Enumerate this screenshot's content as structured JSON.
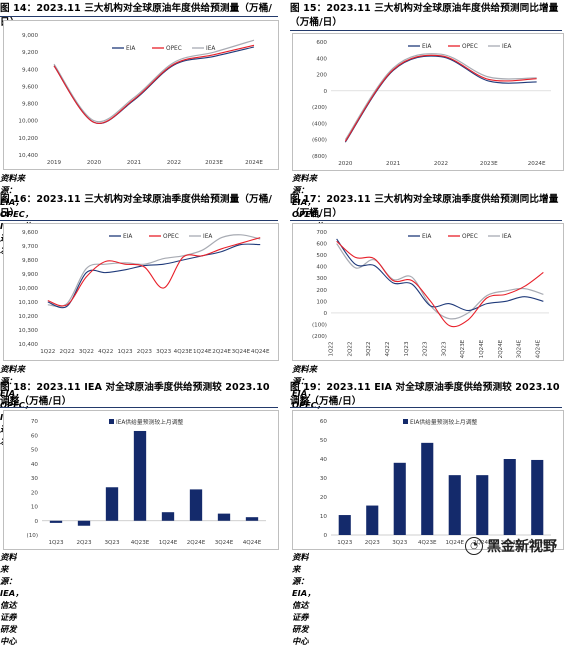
{
  "figures": [
    {
      "title": "图 14：2023.11 三大机构对全球原油年度供给预测量（万桶/日）",
      "source": "资料来源：EIA，OPEC，IEA，信达证券研发中心"
    },
    {
      "title": "图 15：2023.11 三大机构对全球原油年度供给预测同比增量（万桶/日）",
      "source": "资料来源：EIA，OPEC，IEA，信达证券研发中心"
    },
    {
      "title": "图 16：2023.11 三大机构对全球原油季度供给预测量（万桶/日）",
      "source": "资料来源：EIA，OPEC，IEA，信达证券研发中心"
    },
    {
      "title": "图 17：2023.11 三大机构对全球原油季度供给预测同比增量（万桶/日）",
      "source": "资料来源：EIA，OPEC，IEA，信达证券研发中心"
    },
    {
      "title": "图 18：2023.11 IEA 对全球原油季度供给预测较 2023.10 调整（万桶/日）",
      "source": "资料来源：IEA，信达证券研发中心"
    },
    {
      "title": "图 19：2023.11 EIA 对全球原油季度供给预测较 2023.10 调整（万桶/日）",
      "source": "资料来源：EIA，信达证券研发中心"
    }
  ],
  "watermark": "黑金新视野",
  "colors": {
    "EIA": "#1f3a7a",
    "OPEC": "#e8202a",
    "IEA": "#a8abb3",
    "bar": "#142a6b",
    "rule": "#233a6b"
  },
  "chart_data": [
    {
      "type": "line",
      "x": [
        "2019",
        "2020",
        "2021",
        "2022",
        "2023E",
        "2024E"
      ],
      "ylim": [
        9000,
        10400
      ],
      "yticks": [
        "9,000",
        "9,200",
        "9,400",
        "9,600",
        "9,800",
        "10,000",
        "10,200",
        "10,400"
      ],
      "series": [
        {
          "name": "EIA",
          "values": [
            10040,
            9380,
            9640,
            10050,
            10150,
            10260
          ]
        },
        {
          "name": "OPEC",
          "values": [
            10040,
            9380,
            9650,
            10060,
            10170,
            10280
          ]
        },
        {
          "name": "IEA",
          "values": [
            10060,
            9400,
            9670,
            10080,
            10200,
            10340
          ]
        }
      ]
    },
    {
      "type": "line",
      "x": [
        "2020",
        "2021",
        "2022",
        "2023E",
        "2024E"
      ],
      "ylim": [
        -800,
        600
      ],
      "yticks": [
        "600",
        "400",
        "200",
        "0",
        "(200)",
        "(400)",
        "(600)",
        "(800)"
      ],
      "series": [
        {
          "name": "EIA",
          "values": [
            -630,
            250,
            420,
            120,
            110
          ]
        },
        {
          "name": "OPEC",
          "values": [
            -620,
            260,
            430,
            140,
            150
          ]
        },
        {
          "name": "IEA",
          "values": [
            -600,
            280,
            450,
            170,
            160
          ]
        }
      ]
    },
    {
      "type": "line",
      "x": [
        "1Q22",
        "2Q22",
        "3Q22",
        "4Q22",
        "1Q23",
        "2Q23",
        "3Q23",
        "4Q23E",
        "1Q24E",
        "2Q24E",
        "3Q24E",
        "4Q24E"
      ],
      "ylim": [
        9600,
        10400
      ],
      "yticks": [
        "9,600",
        "9,700",
        "9,800",
        "9,900",
        "10,000",
        "10,100",
        "10,200",
        "10,300",
        "10,400"
      ],
      "series": [
        {
          "name": "EIA",
          "values": [
            9900,
            9870,
            10110,
            10110,
            10130,
            10160,
            10170,
            10200,
            10230,
            10260,
            10310,
            10310
          ]
        },
        {
          "name": "OPEC",
          "values": [
            9910,
            9880,
            10080,
            10190,
            10170,
            10150,
            10000,
            10220,
            10230,
            10280,
            10320,
            10360
          ]
        },
        {
          "name": "IEA",
          "values": [
            9880,
            9890,
            10140,
            10170,
            10180,
            10170,
            10210,
            10230,
            10270,
            10360,
            10380,
            10350
          ]
        }
      ]
    },
    {
      "type": "line",
      "x": [
        "1Q22",
        "2Q22",
        "3Q22",
        "4Q22",
        "1Q23",
        "2Q23",
        "3Q23",
        "4Q23E",
        "1Q24E",
        "2Q24E",
        "3Q24E",
        "4Q24E"
      ],
      "ylim": [
        -200,
        700
      ],
      "yticks": [
        "700",
        "600",
        "500",
        "400",
        "300",
        "200",
        "100",
        "0",
        "(100)",
        "(200)"
      ],
      "series": [
        {
          "name": "EIA",
          "values": [
            640,
            420,
            410,
            260,
            250,
            60,
            80,
            20,
            80,
            100,
            140,
            100
          ]
        },
        {
          "name": "OPEC",
          "values": [
            620,
            480,
            470,
            280,
            280,
            100,
            -110,
            -60,
            130,
            160,
            230,
            350
          ]
        },
        {
          "name": "IEA",
          "values": [
            600,
            390,
            460,
            290,
            310,
            60,
            -50,
            0,
            150,
            190,
            210,
            160
          ]
        }
      ]
    },
    {
      "type": "bar",
      "categories": [
        "1Q23",
        "2Q23",
        "3Q23",
        "4Q23E",
        "1Q24E",
        "2Q24E",
        "3Q24E",
        "4Q24E"
      ],
      "ylim": [
        -10,
        70
      ],
      "yticks": [
        "70",
        "60",
        "50",
        "40",
        "30",
        "20",
        "10",
        "0",
        "(10)"
      ],
      "series": [
        {
          "name": "IEA供给量预测较上月调整",
          "values": [
            -1.5,
            -3.5,
            23.5,
            63,
            6,
            22,
            5,
            2.5
          ]
        }
      ]
    },
    {
      "type": "bar",
      "categories": [
        "1Q23",
        "2Q23",
        "3Q23",
        "4Q23E",
        "1Q24E",
        "2Q24E",
        "3Q24E",
        "4Q24E"
      ],
      "ylim": [
        0,
        60
      ],
      "yticks": [
        "60",
        "50",
        "40",
        "30",
        "20",
        "10",
        "0"
      ],
      "series": [
        {
          "name": "EIA供给量预测较上月调整",
          "values": [
            10.5,
            15.5,
            38,
            48.5,
            31.5,
            31.5,
            40,
            39.5
          ]
        }
      ]
    }
  ]
}
